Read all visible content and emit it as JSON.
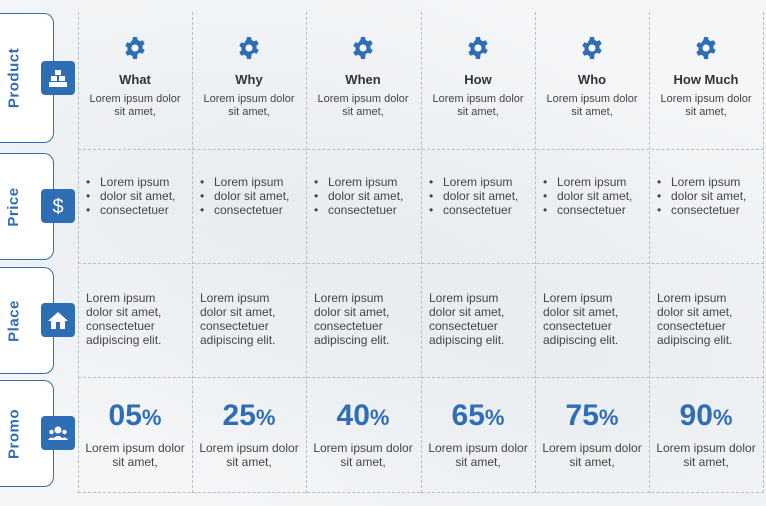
{
  "colors": {
    "accent": "#2f6db5"
  },
  "rows": [
    {
      "label": "Product",
      "icon": "blocks-icon"
    },
    {
      "label": "Price",
      "icon": "dollar-icon"
    },
    {
      "label": "Place",
      "icon": "home-icon"
    },
    {
      "label": "Promo",
      "icon": "people-badge-icon"
    }
  ],
  "columns": [
    {
      "title": "What",
      "product_text": "Lorem ipsum dolor sit amet,",
      "price_bullets": [
        "Lorem ipsum",
        "dolor sit amet,",
        "consectetuer"
      ],
      "place_text": "Lorem ipsum dolor sit amet, consectetuer adipiscing elit.",
      "promo_value": "05",
      "promo_unit": "%",
      "promo_text": "Lorem ipsum dolor sit amet,"
    },
    {
      "title": "Why",
      "product_text": "Lorem ipsum dolor sit amet,",
      "price_bullets": [
        "Lorem ipsum",
        "dolor sit amet,",
        "consectetuer"
      ],
      "place_text": "Lorem ipsum dolor sit amet, consectetuer adipiscing elit.",
      "promo_value": "25",
      "promo_unit": "%",
      "promo_text": "Lorem ipsum dolor sit amet,"
    },
    {
      "title": "When",
      "product_text": "Lorem ipsum dolor sit amet,",
      "price_bullets": [
        "Lorem ipsum",
        "dolor sit amet,",
        "consectetuer"
      ],
      "place_text": "Lorem ipsum dolor sit amet, consectetuer adipiscing elit.",
      "promo_value": "40",
      "promo_unit": "%",
      "promo_text": "Lorem ipsum dolor sit amet,"
    },
    {
      "title": "How",
      "product_text": "Lorem ipsum dolor sit amet,",
      "price_bullets": [
        "Lorem ipsum",
        "dolor sit amet,",
        "consectetuer"
      ],
      "place_text": "Lorem ipsum dolor sit amet, consectetuer adipiscing elit.",
      "promo_value": "65",
      "promo_unit": "%",
      "promo_text": "Lorem ipsum dolor sit amet,"
    },
    {
      "title": "Who",
      "product_text": "Lorem ipsum dolor sit amet,",
      "price_bullets": [
        "Lorem ipsum",
        "dolor sit amet,",
        "consectetuer"
      ],
      "place_text": "Lorem ipsum dolor sit amet, consectetuer adipiscing elit.",
      "promo_value": "75",
      "promo_unit": "%",
      "promo_text": "Lorem ipsum dolor sit amet,"
    },
    {
      "title": "How Much",
      "product_text": "Lorem ipsum dolor sit amet,",
      "price_bullets": [
        "Lorem ipsum",
        "dolor sit amet,",
        "consectetuer"
      ],
      "place_text": "Lorem ipsum dolor sit amet, consectetuer adipiscing elit.",
      "promo_value": "90",
      "promo_unit": "%",
      "promo_text": "Lorem ipsum dolor sit amet,"
    }
  ]
}
